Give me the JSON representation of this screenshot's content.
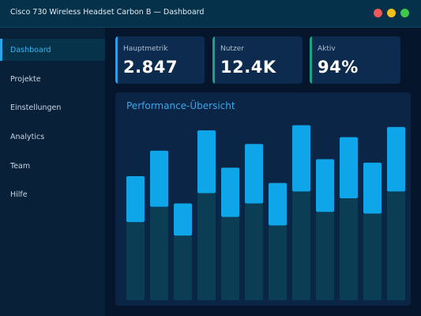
{
  "window": {
    "title": "Cisco 730 Wireless Headset Carbon B — Dashboard"
  },
  "sidebar": {
    "items": [
      {
        "label": "Dashboard",
        "active": true
      },
      {
        "label": "Projekte",
        "active": false
      },
      {
        "label": "Einstellungen",
        "active": false
      },
      {
        "label": "Analytics",
        "active": false
      },
      {
        "label": "Team",
        "active": false
      },
      {
        "label": "Hilfe",
        "active": false
      }
    ]
  },
  "stats": [
    {
      "label": "Hauptmetrik",
      "value": "2.847",
      "accent": "#2e9fe4"
    },
    {
      "label": "Nutzer",
      "value": "12.4K",
      "accent": "#17a589"
    },
    {
      "label": "Aktiv",
      "value": "94%",
      "accent": "#17a589"
    }
  ],
  "colors": {
    "bar": "#0ea5e9",
    "bar_reflection": "#0b3e55"
  },
  "chart_data": {
    "title": "Performance-Übersicht",
    "type": "bar",
    "range_bars": [
      {
        "low": 0.46,
        "high": 0.73
      },
      {
        "low": 0.55,
        "high": 0.88
      },
      {
        "low": 0.38,
        "high": 0.57
      },
      {
        "low": 0.63,
        "high": 1.0
      },
      {
        "low": 0.49,
        "high": 0.78
      },
      {
        "low": 0.57,
        "high": 0.92
      },
      {
        "low": 0.44,
        "high": 0.69
      },
      {
        "low": 0.64,
        "high": 1.03
      },
      {
        "low": 0.52,
        "high": 0.83
      },
      {
        "low": 0.6,
        "high": 0.96
      },
      {
        "low": 0.51,
        "high": 0.81
      },
      {
        "low": 0.64,
        "high": 1.02
      }
    ]
  }
}
